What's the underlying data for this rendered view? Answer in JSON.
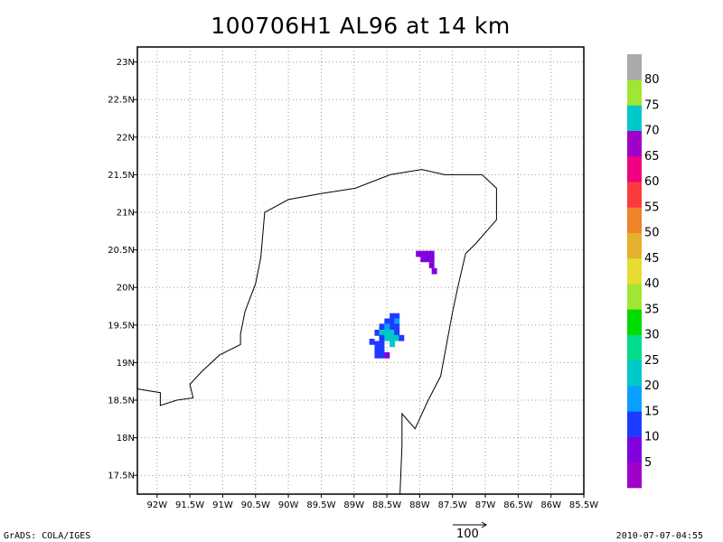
{
  "title": "100706H1 AL96 at 14 km",
  "footer": {
    "left": "GrADS: COLA/IGES",
    "right": "2010-07-07-04:55"
  },
  "vector_reference": {
    "label": "100"
  },
  "colorbar": {
    "colors": [
      "#a000c8",
      "#8200dc",
      "#1e3cff",
      "#0aa0ff",
      "#00c8c8",
      "#00dc8c",
      "#00dc00",
      "#a0e632",
      "#e6dc32",
      "#e6af2d",
      "#f08228",
      "#fa3c3c",
      "#f00082",
      "#a000c8",
      "#00c8c8",
      "#a0e632",
      "#aaaaaa"
    ],
    "labels": [
      "5",
      "10",
      "15",
      "20",
      "25",
      "30",
      "35",
      "40",
      "45",
      "50",
      "55",
      "60",
      "65",
      "70",
      "75",
      "80"
    ]
  },
  "chart_data": {
    "type": "map",
    "title": "100706H1 AL96 at 14 km",
    "xlim": [
      -92.3,
      -85.5
    ],
    "ylim": [
      17.25,
      23.2
    ],
    "grid": true,
    "x_ticks": [
      {
        "v": -92,
        "label": "92W"
      },
      {
        "v": -91.5,
        "label": "91.5W"
      },
      {
        "v": -91,
        "label": "91W"
      },
      {
        "v": -90.5,
        "label": "90.5W"
      },
      {
        "v": -90,
        "label": "90W"
      },
      {
        "v": -89.5,
        "label": "89.5W"
      },
      {
        "v": -89,
        "label": "89W"
      },
      {
        "v": -88.5,
        "label": "88.5W"
      },
      {
        "v": -88,
        "label": "88W"
      },
      {
        "v": -87.5,
        "label": "87.5W"
      },
      {
        "v": -87,
        "label": "87W"
      },
      {
        "v": -86.5,
        "label": "86.5W"
      },
      {
        "v": -86,
        "label": "86W"
      },
      {
        "v": -85.5,
        "label": "85.5W"
      }
    ],
    "y_ticks": [
      {
        "v": 17.5,
        "label": "17.5N"
      },
      {
        "v": 18,
        "label": "18N"
      },
      {
        "v": 18.5,
        "label": "18.5N"
      },
      {
        "v": 19,
        "label": "19N"
      },
      {
        "v": 19.5,
        "label": "19.5N"
      },
      {
        "v": 20,
        "label": "20N"
      },
      {
        "v": 20.5,
        "label": "20.5N"
      },
      {
        "v": 21,
        "label": "21N"
      },
      {
        "v": 21.5,
        "label": "21.5N"
      },
      {
        "v": 22,
        "label": "22N"
      },
      {
        "v": 22.5,
        "label": "22.5N"
      },
      {
        "v": 23,
        "label": "23N"
      }
    ],
    "coastline": [
      [
        -92.3,
        18.65
      ],
      [
        -91.95,
        18.6
      ],
      [
        -91.95,
        18.43
      ],
      [
        -91.7,
        18.5
      ],
      [
        -91.45,
        18.53
      ],
      [
        -91.5,
        18.71
      ],
      [
        -91.32,
        18.88
      ],
      [
        -91.05,
        19.1
      ],
      [
        -90.73,
        19.24
      ],
      [
        -90.73,
        19.38
      ],
      [
        -90.66,
        19.68
      ],
      [
        -90.5,
        20.05
      ],
      [
        -90.42,
        20.4
      ],
      [
        -90.36,
        21.0
      ],
      [
        -90.0,
        21.17
      ],
      [
        -89.5,
        21.25
      ],
      [
        -88.98,
        21.32
      ],
      [
        -88.45,
        21.5
      ],
      [
        -87.97,
        21.57
      ],
      [
        -87.62,
        21.5
      ],
      [
        -87.05,
        21.5
      ],
      [
        -86.83,
        21.32
      ],
      [
        -86.83,
        20.9
      ],
      [
        -87.15,
        20.58
      ],
      [
        -87.3,
        20.45
      ],
      [
        -87.42,
        20.0
      ],
      [
        -87.5,
        19.67
      ],
      [
        -87.68,
        18.82
      ],
      [
        -87.87,
        18.5
      ],
      [
        -88.07,
        18.12
      ],
      [
        -88.27,
        18.32
      ],
      [
        -88.27,
        17.9
      ],
      [
        -88.3,
        17.25
      ]
    ],
    "cells": [
      {
        "lon": -88.42,
        "lat": 19.62,
        "value": 14
      },
      {
        "lon": -88.35,
        "lat": 19.62,
        "value": 14
      },
      {
        "lon": -88.5,
        "lat": 19.55,
        "value": 14
      },
      {
        "lon": -88.42,
        "lat": 19.55,
        "value": 14
      },
      {
        "lon": -88.35,
        "lat": 19.55,
        "value": 15
      },
      {
        "lon": -88.58,
        "lat": 19.48,
        "value": 14
      },
      {
        "lon": -88.5,
        "lat": 19.48,
        "value": 15
      },
      {
        "lon": -88.42,
        "lat": 19.48,
        "value": 14
      },
      {
        "lon": -88.35,
        "lat": 19.48,
        "value": 14
      },
      {
        "lon": -88.65,
        "lat": 19.4,
        "value": 14
      },
      {
        "lon": -88.58,
        "lat": 19.4,
        "value": 22
      },
      {
        "lon": -88.5,
        "lat": 19.4,
        "value": 22
      },
      {
        "lon": -88.42,
        "lat": 19.4,
        "value": 21
      },
      {
        "lon": -88.35,
        "lat": 19.4,
        "value": 14
      },
      {
        "lon": -88.58,
        "lat": 19.33,
        "value": 14
      },
      {
        "lon": -88.5,
        "lat": 19.33,
        "value": 22
      },
      {
        "lon": -88.42,
        "lat": 19.33,
        "value": 21
      },
      {
        "lon": -88.35,
        "lat": 19.33,
        "value": 22
      },
      {
        "lon": -88.28,
        "lat": 19.33,
        "value": 14
      },
      {
        "lon": -88.73,
        "lat": 19.28,
        "value": 14
      },
      {
        "lon": -88.65,
        "lat": 19.25,
        "value": 14
      },
      {
        "lon": -88.58,
        "lat": 19.25,
        "value": 14
      },
      {
        "lon": -88.42,
        "lat": 19.25,
        "value": 21
      },
      {
        "lon": -88.65,
        "lat": 19.18,
        "value": 14
      },
      {
        "lon": -88.58,
        "lat": 19.18,
        "value": 14
      },
      {
        "lon": -88.65,
        "lat": 19.1,
        "value": 14
      },
      {
        "lon": -88.58,
        "lat": 19.1,
        "value": 14
      },
      {
        "lon": -88.5,
        "lat": 19.1,
        "value": 8
      },
      {
        "lon": -88.02,
        "lat": 20.45,
        "value": 8
      },
      {
        "lon": -87.95,
        "lat": 20.45,
        "value": 8
      },
      {
        "lon": -87.88,
        "lat": 20.45,
        "value": 8
      },
      {
        "lon": -87.82,
        "lat": 20.45,
        "value": 7
      },
      {
        "lon": -87.95,
        "lat": 20.38,
        "value": 8
      },
      {
        "lon": -87.88,
        "lat": 20.38,
        "value": 8
      },
      {
        "lon": -87.82,
        "lat": 20.38,
        "value": 7
      },
      {
        "lon": -87.82,
        "lat": 20.3,
        "value": 8
      },
      {
        "lon": -87.78,
        "lat": 20.22,
        "value": 8
      }
    ]
  }
}
